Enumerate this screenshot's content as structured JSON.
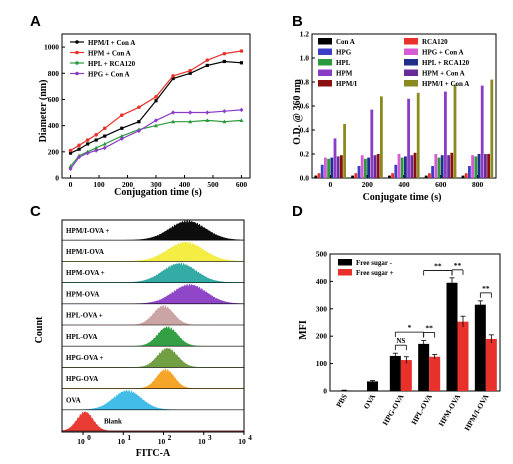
{
  "chart_data": [
    {
      "panel": "A",
      "type": "line",
      "xlabel": "Conjugation time (s)",
      "ylabel": "Diameter (nm)",
      "xlim": [
        -30,
        630
      ],
      "ylim": [
        0,
        1100
      ],
      "xticks": [
        0,
        100,
        200,
        300,
        400,
        500,
        600
      ],
      "yticks": [
        0,
        200,
        400,
        600,
        800,
        1000
      ],
      "legend_position": "top-left",
      "series": [
        {
          "name": "HPM/I + Con A",
          "color": "#000000",
          "x": [
            0,
            30,
            60,
            90,
            120,
            180,
            240,
            300,
            360,
            420,
            480,
            540,
            600
          ],
          "y": [
            190,
            220,
            260,
            290,
            320,
            380,
            430,
            590,
            760,
            800,
            860,
            890,
            880
          ]
        },
        {
          "name": "HPM + Con A",
          "color": "#e8312a",
          "x": [
            0,
            30,
            60,
            90,
            120,
            180,
            240,
            300,
            360,
            420,
            480,
            540,
            600
          ],
          "y": [
            210,
            250,
            290,
            330,
            380,
            480,
            540,
            620,
            780,
            820,
            900,
            950,
            970
          ]
        },
        {
          "name": "HPL + RCA120",
          "color": "#2a9a3a",
          "x": [
            0,
            30,
            60,
            90,
            120,
            180,
            240,
            300,
            360,
            420,
            480,
            540,
            600
          ],
          "y": [
            90,
            170,
            200,
            230,
            260,
            320,
            370,
            400,
            430,
            430,
            440,
            430,
            440
          ]
        },
        {
          "name": "HPG + Con A",
          "color": "#8a3cc6",
          "x": [
            0,
            30,
            60,
            90,
            120,
            180,
            240,
            300,
            360,
            420,
            480,
            540,
            600
          ],
          "y": [
            70,
            160,
            190,
            210,
            230,
            300,
            360,
            440,
            500,
            500,
            500,
            510,
            520
          ]
        }
      ]
    },
    {
      "panel": "B",
      "type": "bar",
      "xlabel": "Conjugate time (s)",
      "ylabel": "O.D. @ 360 nm",
      "categories": [
        "0",
        "200",
        "400",
        "600",
        "800"
      ],
      "ylim": [
        0,
        1.2
      ],
      "yticks": [
        0.0,
        0.2,
        0.4,
        0.6,
        0.8,
        1.0,
        1.2
      ],
      "legend_position": "top",
      "series": [
        {
          "name": "Con A",
          "color": "#000000",
          "values": [
            0.02,
            0.02,
            0.02,
            0.02,
            0.02
          ]
        },
        {
          "name": "RCA120",
          "color": "#e8312a",
          "values": [
            0.04,
            0.04,
            0.04,
            0.04,
            0.04
          ]
        },
        {
          "name": "HPG",
          "color": "#3b3fc8",
          "values": [
            0.11,
            0.1,
            0.11,
            0.1,
            0.1
          ]
        },
        {
          "name": "HPG + Con A",
          "color": "#d85bd6",
          "values": [
            0.17,
            0.19,
            0.2,
            0.2,
            0.19
          ]
        },
        {
          "name": "HPL",
          "color": "#2a9a3a",
          "values": [
            0.16,
            0.16,
            0.17,
            0.17,
            0.18
          ]
        },
        {
          "name": "HPL + RCA120",
          "color": "#1f2f8a",
          "values": [
            0.17,
            0.17,
            0.18,
            0.19,
            0.2
          ]
        },
        {
          "name": "HPM",
          "color": "#8a3cc6",
          "values": [
            0.33,
            0.57,
            0.66,
            0.72,
            0.77
          ]
        },
        {
          "name": "HPM + Con A",
          "color": "#6a2a9a",
          "values": [
            0.18,
            0.19,
            0.19,
            0.19,
            0.2
          ]
        },
        {
          "name": "HPM/I",
          "color": "#8a1010",
          "values": [
            0.19,
            0.2,
            0.21,
            0.21,
            0.2
          ]
        },
        {
          "name": "HPM/I + Con A",
          "color": "#8a8a20",
          "values": [
            0.45,
            0.68,
            0.71,
            0.78,
            0.82
          ]
        }
      ]
    },
    {
      "panel": "C",
      "type": "area",
      "xlabel": "FITC-A",
      "ylabel": "Count",
      "x_scale": "log",
      "xlim": [
        0.3,
        10000
      ],
      "xticks_exp": [
        "0",
        "1",
        "2",
        "3",
        "4"
      ],
      "xtick_base": "10",
      "series": [
        {
          "name": "HPM/I-OVA +",
          "color": "#000000",
          "peak_log": 2.6,
          "width": 0.45
        },
        {
          "name": "HPM/I-OVA",
          "color": "#f2ec3a",
          "peak_log": 2.55,
          "width": 0.45
        },
        {
          "name": "HPM-OVA +",
          "color": "#2aa6a0",
          "peak_log": 2.4,
          "width": 0.42
        },
        {
          "name": "HPM-OVA",
          "color": "#8a3cc6",
          "peak_log": 2.65,
          "width": 0.42
        },
        {
          "name": "HPL-OVA +",
          "color": "#c8a0a0",
          "peak_log": 2.0,
          "width": 0.25
        },
        {
          "name": "HPL-OVA",
          "color": "#2a9a3a",
          "peak_log": 2.1,
          "width": 0.25
        },
        {
          "name": "HPG-OVA +",
          "color": "#6a9a3a",
          "peak_log": 2.1,
          "width": 0.25
        },
        {
          "name": "HPG-OVA",
          "color": "#f5a020",
          "peak_log": 2.05,
          "width": 0.22
        },
        {
          "name": "OVA",
          "color": "#38b8e8",
          "peak_log": 1.1,
          "width": 0.35
        },
        {
          "name": "Blank",
          "color": "#e8312a",
          "peak_log": 0.05,
          "width": 0.2
        }
      ]
    },
    {
      "panel": "D",
      "type": "bar",
      "ylabel": "MFI",
      "categories": [
        "PBS",
        "OVA",
        "HPG-OVA",
        "HPL-OVA",
        "HPM-OVA",
        "HPM/I-OVA"
      ],
      "ylim": [
        0,
        500
      ],
      "yticks": [
        0,
        100,
        200,
        300,
        400,
        500
      ],
      "legend_position": "top-left",
      "series": [
        {
          "name": "Free sugar -",
          "color": "#000000",
          "values": [
            2,
            35,
            128,
            172,
            395,
            315
          ],
          "errors": [
            1,
            3,
            10,
            12,
            18,
            14
          ]
        },
        {
          "name": "Free sugar +",
          "color": "#e8312a",
          "values": [
            null,
            null,
            113,
            125,
            253,
            190
          ],
          "errors": [
            null,
            null,
            12,
            8,
            20,
            15
          ]
        }
      ],
      "annotations": [
        {
          "label": "NS"
        },
        {
          "label": "**"
        },
        {
          "label": "**"
        },
        {
          "label": "**"
        },
        {
          "label": "*"
        },
        {
          "label": "**"
        }
      ]
    }
  ],
  "panel_letters": [
    "A",
    "B",
    "C",
    "D"
  ]
}
